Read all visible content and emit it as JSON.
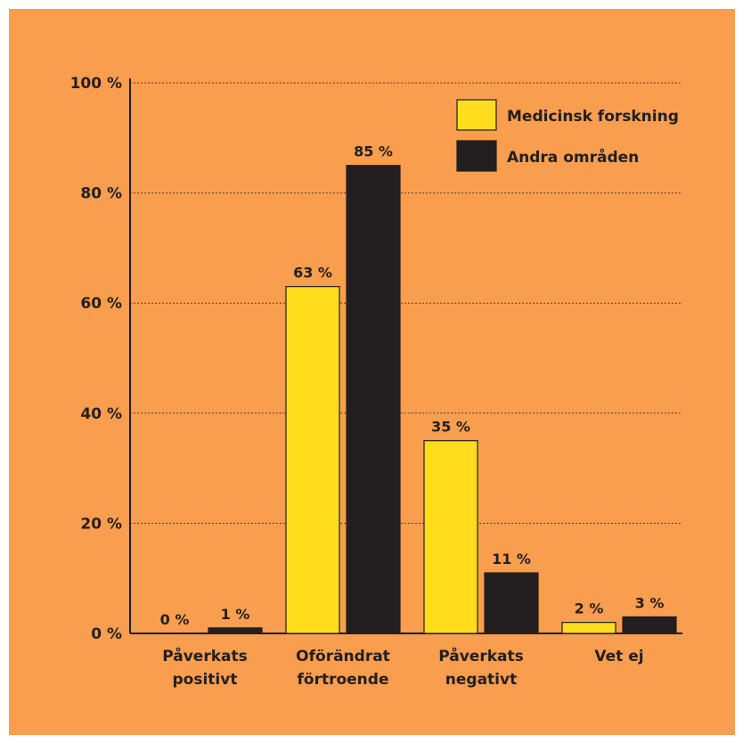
{
  "colors": {
    "background": "#f99d4f",
    "series": [
      "#ffdd1c",
      "#231f20"
    ],
    "text": "#231f20"
  },
  "chart_data": {
    "type": "bar",
    "title": "",
    "xlabel": "",
    "ylabel": "",
    "categories": [
      [
        "Påverkats",
        "positivt"
      ],
      [
        "Oförändrat",
        "förtroende"
      ],
      [
        "Påverkats",
        "negativt"
      ],
      [
        "Vet ej"
      ]
    ],
    "series": [
      {
        "name": "Medicinsk forskning",
        "values": [
          0,
          63,
          35,
          2
        ],
        "labels": [
          "0 %",
          "63 %",
          "35 %",
          "2 %"
        ]
      },
      {
        "name": "Andra områden",
        "values": [
          1,
          85,
          11,
          3
        ],
        "labels": [
          "1 %",
          "85 %",
          "11 %",
          "3 %"
        ]
      }
    ],
    "ylim": [
      0,
      100
    ],
    "yticks": [
      0,
      20,
      40,
      60,
      80,
      100
    ],
    "ytick_labels": [
      "0 %",
      "20 %",
      "40 %",
      "60 %",
      "80 %",
      "100 %"
    ],
    "grid": "horizontal dotted",
    "legend_position": "top-right"
  }
}
